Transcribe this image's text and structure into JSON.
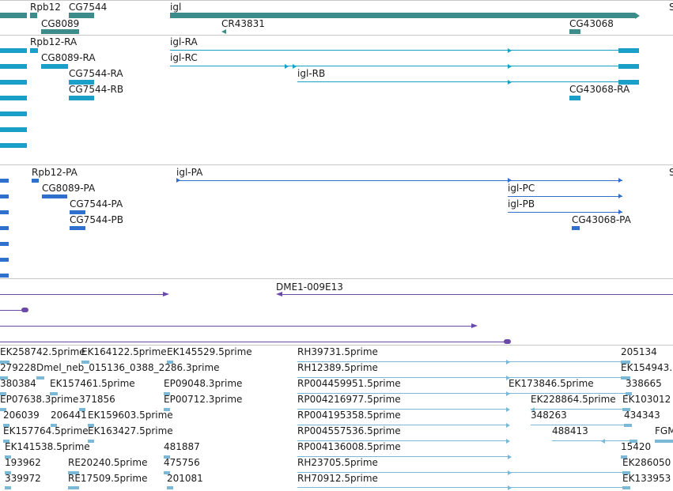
{
  "colors": {
    "gene_dark": "#3c8c8c",
    "transcript": "#1aa0c8",
    "protein": "#3070cc",
    "clone": "#6a4aa6",
    "est": "#7ab8d6",
    "separator": "#c8c8c8"
  },
  "genes": {
    "rpb12": "Rpb12",
    "cg7544": "CG7544",
    "igl": "igl",
    "s_cut": "S",
    "cg8089": "CG8089",
    "cr43831": "CR43831",
    "cg43068": "CG43068"
  },
  "transcripts": {
    "rpb12_ra": "Rpb12-RA",
    "igl_ra": "igl-RA",
    "cg8089_ra": "CG8089-RA",
    "igl_rc": "igl-RC",
    "cg7544_ra": "CG7544-RA",
    "igl_rb": "igl-RB",
    "cg7544_rb": "CG7544-RB",
    "cg43068_ra": "CG43068-RA"
  },
  "proteins": {
    "rpb12_pa": "Rpb12-PA",
    "igl_pa": "igl-PA",
    "s_cut": "S",
    "cg8089_pa": "CG8089-PA",
    "igl_pc": "igl-PC",
    "cg7544_pa": "CG7544-PA",
    "igl_pb": "igl-PB",
    "cg7544_pb": "CG7544-PB",
    "cg43068_pa": "CG43068-PA"
  },
  "clones": {
    "dme1": "DME1-009E13"
  },
  "ests": {
    "r1a": "EK258742.5prime",
    "r1b": "EK164122.5prime",
    "r1c": "EK145529.5prime",
    "r1d": "RH39731.5prime",
    "r1e": "205134",
    "r2a": "279228",
    "r2b": "Dmel_neb_015136_0388_2286.3prime",
    "r2c": "RH12389.5prime",
    "r2d": "EK154943.",
    "r3a": "380384",
    "r3b": "EK157461.5prime",
    "r3c": "EP09048.3prime",
    "r3d": "RP004459951.5prime",
    "r3e": "EK173846.5prime",
    "r3f": "338665",
    "r4a": "EP07638.3prime",
    "r4b": "371856",
    "r4c": "EP00712.3prime",
    "r4d": "RP004216977.5prime",
    "r4e": "EK228864.5prime",
    "r4f": "EK103012",
    "r5a": "206039",
    "r5b": "206441",
    "r5c": "EK159603.5prime",
    "r5d": "RP004195358.5prime",
    "r5e": "348263",
    "r5f": "434343",
    "r6a": "EK157764.5prime",
    "r6b": "EK163427.5prime",
    "r6c": "RP004557536.5prime",
    "r6d": "488413",
    "r6e": "FGM",
    "r7a": "EK141538.5prime",
    "r7b": "481887",
    "r7c": "RP004136008.5prime",
    "r7d": "15420",
    "r8a": "193962",
    "r8b": "RE20240.5prime",
    "r8c": "475756",
    "r8d": "RH23705.5prime",
    "r8e": "EK286050",
    "r9a": "339972",
    "r9b": "RE17509.5prime",
    "r9c": "201081",
    "r9d": "RH70912.5prime",
    "r9e": "EK133953"
  }
}
